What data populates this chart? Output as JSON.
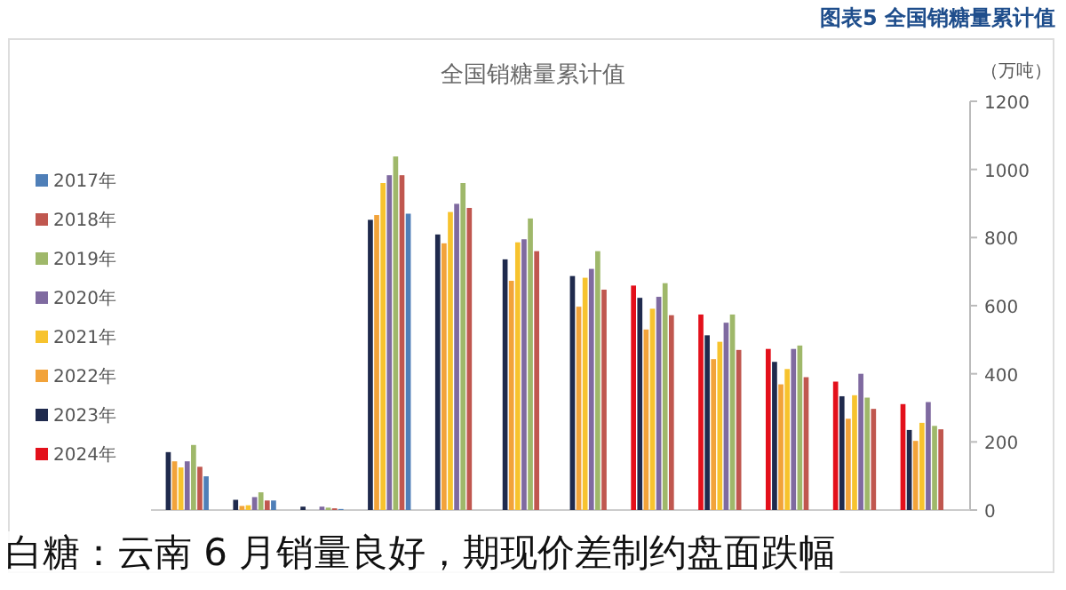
{
  "chart_data": {
    "type": "bar",
    "title": "全国销糖量累计值",
    "subtitle": "图表5 全国销糖量累计值",
    "ylabel": "（万吨）",
    "annotations": [
      "白糖：云南 6 月销量良好，期现价差制约盘面跌幅"
    ],
    "categories": [
      null,
      null,
      null,
      null,
      null,
      null,
      null,
      null,
      null,
      null,
      null,
      null
    ],
    "series": [
      {
        "name": "2024年",
        "color": "#e3101b",
        "values": [
          null,
          null,
          null,
          null,
          null,
          null,
          null,
          659,
          574,
          473,
          377,
          311
        ]
      },
      {
        "name": "2023年",
        "color": "#1f2a4d",
        "values": [
          170,
          30,
          10,
          852,
          809,
          736,
          687,
          623,
          513,
          435,
          334,
          235
        ]
      },
      {
        "name": "2022年",
        "color": "#f2a33a",
        "values": [
          143,
          12,
          null,
          866,
          783,
          673,
          597,
          530,
          443,
          369,
          268,
          203
        ]
      },
      {
        "name": "2021年",
        "color": "#f7c32e",
        "values": [
          125,
          14,
          null,
          960,
          875,
          786,
          682,
          591,
          494,
          414,
          337,
          256
        ]
      },
      {
        "name": "2020年",
        "color": "#7f6aa0",
        "values": [
          143,
          38,
          10,
          983,
          899,
          795,
          708,
          626,
          550,
          473,
          400,
          317
        ]
      },
      {
        "name": "2019年",
        "color": "#9fb86a",
        "values": [
          191,
          52,
          7,
          1038,
          960,
          856,
          760,
          666,
          574,
          483,
          330,
          247
        ]
      },
      {
        "name": "2018年",
        "color": "#c0574f",
        "values": [
          127,
          28,
          5,
          983,
          887,
          760,
          647,
          572,
          470,
          390,
          297,
          237
        ]
      },
      {
        "name": "2017年",
        "color": "#4f7fb8",
        "values": [
          99,
          28,
          3,
          870,
          null,
          null,
          null,
          null,
          null,
          null,
          null,
          null
        ]
      }
    ],
    "ylim": [
      0,
      1200
    ],
    "yticks": [
      0,
      200,
      400,
      600,
      800,
      1000,
      1200
    ],
    "grid": false,
    "legend": "left"
  }
}
